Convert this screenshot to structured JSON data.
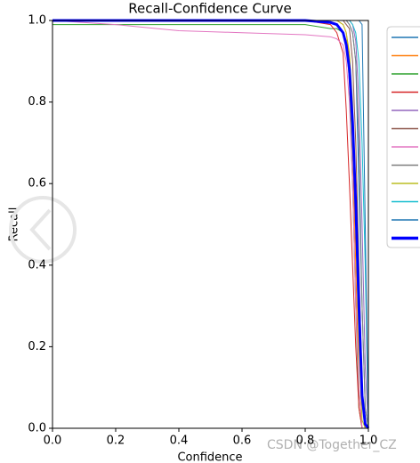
{
  "chart_data": {
    "type": "line",
    "title": "Recall-Confidence Curve",
    "xlabel": "Confidence",
    "ylabel": "Recall",
    "x": [
      0,
      0.2,
      0.4,
      0.6,
      0.8,
      0.88,
      0.9,
      0.92,
      0.93,
      0.94,
      0.95,
      0.96,
      0.97,
      0.98,
      0.99,
      1.0
    ],
    "series": [
      {
        "color": "#1f77b4",
        "linewidth": 1,
        "values": [
          1,
          1,
          1,
          1,
          1,
          1,
          1,
          1,
          1,
          0.99,
          0.97,
          0.9,
          0.6,
          0.3,
          0.05,
          0
        ]
      },
      {
        "color": "#ff7f0e",
        "linewidth": 1,
        "values": [
          1,
          1,
          1,
          1,
          1,
          1,
          1,
          0.99,
          0.97,
          0.9,
          0.7,
          0.4,
          0.1,
          0,
          0,
          0
        ]
      },
      {
        "color": "#2ca02c",
        "linewidth": 1,
        "values": [
          0.99,
          0.99,
          0.99,
          0.99,
          0.99,
          0.98,
          0.98,
          0.97,
          0.95,
          0.85,
          0.6,
          0.3,
          0.05,
          0,
          0,
          0
        ]
      },
      {
        "color": "#d62728",
        "linewidth": 1,
        "values": [
          1,
          1,
          1,
          1,
          1,
          0.99,
          0.97,
          0.92,
          0.78,
          0.6,
          0.4,
          0.2,
          0.05,
          0,
          0,
          0
        ]
      },
      {
        "color": "#9467bd",
        "linewidth": 1,
        "values": [
          1,
          1,
          1,
          1,
          1,
          1,
          1,
          1,
          1,
          1,
          0.99,
          0.95,
          0.8,
          0.5,
          0.15,
          0
        ]
      },
      {
        "color": "#8c564b",
        "linewidth": 1,
        "values": [
          1,
          1,
          1,
          1,
          1,
          1,
          1,
          1,
          0.99,
          0.98,
          0.9,
          0.7,
          0.4,
          0.1,
          0,
          0
        ]
      },
      {
        "color": "#e377c2",
        "linewidth": 1,
        "values": [
          1,
          0.99,
          0.975,
          0.97,
          0.965,
          0.96,
          0.955,
          0.94,
          0.9,
          0.8,
          0.6,
          0.3,
          0.1,
          0,
          0,
          0
        ]
      },
      {
        "color": "#7f7f7f",
        "linewidth": 1,
        "values": [
          1,
          1,
          1,
          1,
          1,
          1,
          1,
          1,
          1,
          0.99,
          0.97,
          0.9,
          0.7,
          0.3,
          0.05,
          0
        ]
      },
      {
        "color": "#bcbd22",
        "linewidth": 1,
        "values": [
          1,
          1,
          1,
          1,
          1,
          1,
          1,
          0.99,
          0.97,
          0.92,
          0.8,
          0.5,
          0.2,
          0.02,
          0,
          0
        ]
      },
      {
        "color": "#17becf",
        "linewidth": 1,
        "values": [
          1,
          1,
          1,
          1,
          1,
          1,
          1,
          1,
          1,
          1,
          0.99,
          0.97,
          0.9,
          0.7,
          0.4,
          0
        ]
      },
      {
        "color": "#1f77b4",
        "linewidth": 1,
        "values": [
          1,
          1,
          1,
          1,
          1,
          1,
          1,
          1,
          1,
          1,
          1,
          1,
          1,
          0.99,
          0.5,
          0
        ]
      },
      {
        "color": "#0000ff",
        "linewidth": 3,
        "values": [
          1,
          1,
          1,
          1,
          1,
          0.995,
          0.99,
          0.97,
          0.94,
          0.88,
          0.75,
          0.55,
          0.3,
          0.08,
          0.01,
          0
        ]
      }
    ],
    "xlim": [
      0,
      1.0
    ],
    "ylim": [
      0,
      1.0
    ],
    "xticks": [
      {
        "value": 0,
        "label": "0.0"
      },
      0.2,
      0.4,
      0.6,
      0.8,
      {
        "value": 1.0,
        "label": "1.0"
      }
    ],
    "yticks": [
      {
        "value": 0,
        "label": "0.0"
      },
      0.2,
      0.4,
      0.6,
      0.8,
      {
        "value": 1.0,
        "label": "1.0"
      }
    ],
    "grid": false,
    "watermark": "CSDN @Together_CZ"
  }
}
